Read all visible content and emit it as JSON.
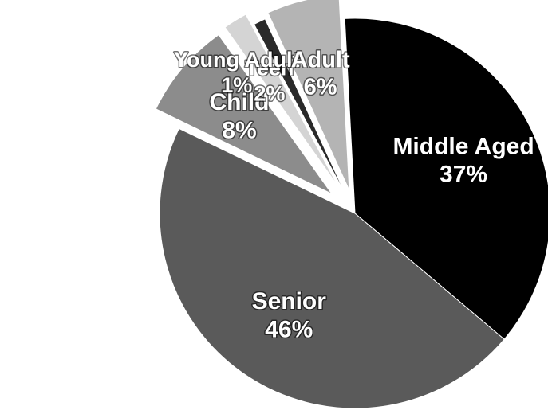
{
  "chart_data": {
    "type": "pie",
    "title": "",
    "legend": "none",
    "slices": [
      {
        "label": "Middle Aged",
        "percent_label": "37%",
        "value": 37,
        "color": "#000000"
      },
      {
        "label": "Senior",
        "percent_label": "46%",
        "value": 46,
        "color": "#5a5a5a"
      },
      {
        "label": "Child",
        "percent_label": "8%",
        "value": 8,
        "color": "#8c8c8c"
      },
      {
        "label": "Teen",
        "percent_label": "2%",
        "value": 2,
        "color": "#d4d4d4"
      },
      {
        "label": "Young Adult",
        "percent_label": "1%",
        "value": 1,
        "color": "#2a2a2a"
      },
      {
        "label": "Adult",
        "percent_label": "6%",
        "value": 6,
        "color": "#b4b4b4"
      }
    ]
  }
}
